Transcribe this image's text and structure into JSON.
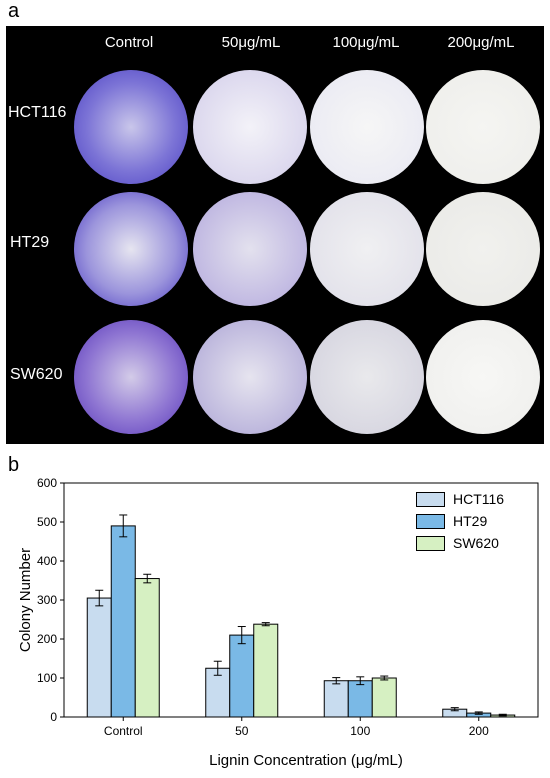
{
  "panel_a": {
    "letter": "a",
    "columns": [
      "Control",
      "50μg/mL",
      "100μg/mL",
      "200μg/mL"
    ],
    "rows": [
      "HCT116",
      "HT29",
      "SW620"
    ]
  },
  "panel_b": {
    "letter": "b"
  },
  "chart_data": {
    "type": "bar",
    "categories": [
      "Control",
      "50",
      "100",
      "200"
    ],
    "series": [
      {
        "name": "HCT116",
        "color": "#c8dcef",
        "values": [
          305,
          125,
          93,
          20
        ],
        "errors": [
          20,
          18,
          8,
          4
        ]
      },
      {
        "name": "HT29",
        "color": "#7ab9e6",
        "values": [
          490,
          210,
          93,
          10
        ],
        "errors": [
          28,
          22,
          10,
          3
        ]
      },
      {
        "name": "SW620",
        "color": "#d6f0c2",
        "values": [
          355,
          238,
          100,
          5
        ],
        "errors": [
          11,
          4,
          5,
          2
        ]
      }
    ],
    "xlabel": "Lignin Concentration (μg/mL)",
    "ylabel": "Colony Number",
    "ylim": [
      0,
      600
    ],
    "yticks": [
      "0",
      "100",
      "200",
      "300",
      "400",
      "500",
      "600"
    ],
    "legend_position": "top-right"
  }
}
